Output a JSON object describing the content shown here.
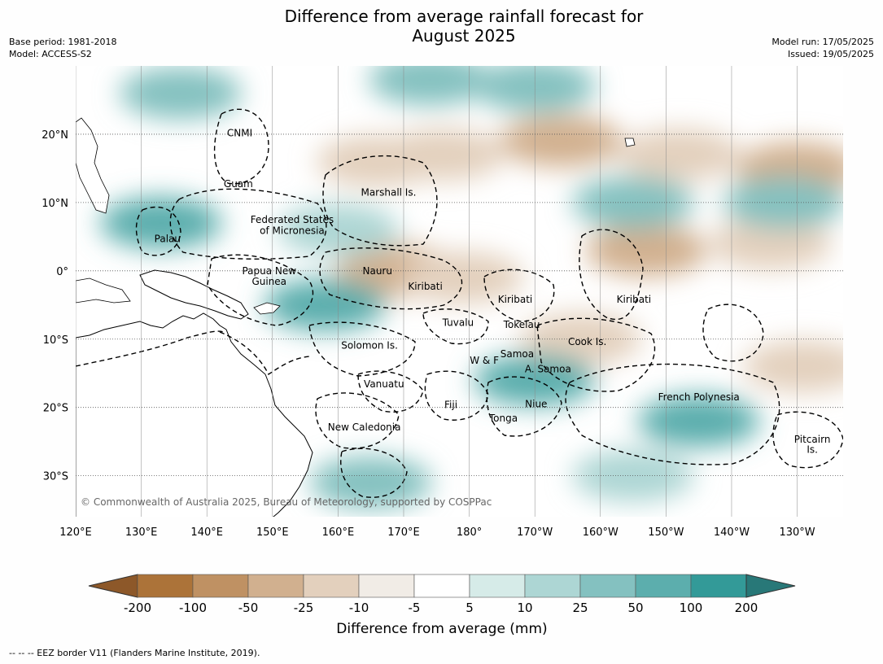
{
  "header": {
    "title_line1": "Difference from average rainfall forecast for",
    "title_line2": "August 2025",
    "base_period": "Base period: 1981-2018",
    "model": "Model: ACCESS-S2",
    "model_run": "Model run: 17/05/2025",
    "issued": "Issued: 19/05/2025"
  },
  "axes": {
    "lon_labels": [
      "120°E",
      "130°E",
      "140°E",
      "150°E",
      "160°E",
      "170°E",
      "180°",
      "170°W",
      "160°W",
      "150°W",
      "140°W",
      "130°W"
    ],
    "lat_labels": [
      "20°N",
      "10°N",
      "0°",
      "10°S",
      "20°S",
      "30°S"
    ]
  },
  "regions": [
    {
      "name": "CNMI",
      "lon": 145.0,
      "lat": 20.2
    },
    {
      "name": "Guam",
      "lon": 144.8,
      "lat": 12.7
    },
    {
      "name": "Marshall Is.",
      "lon": 167.7,
      "lat": 11.5
    },
    {
      "name": "Federated States",
      "lon": 153.0,
      "lat": 7.5
    },
    {
      "name": "of Micronesia",
      "lon": 153.0,
      "lat": 5.9
    },
    {
      "name": "Palau",
      "lon": 134.0,
      "lat": 4.7
    },
    {
      "name": "Papua New",
      "lon": 149.5,
      "lat": 0.0
    },
    {
      "name": "Guinea",
      "lon": 149.5,
      "lat": -1.6
    },
    {
      "name": "Nauru",
      "lon": 166.0,
      "lat": 0.0
    },
    {
      "name": "Kiribati",
      "lon": 173.3,
      "lat": -2.3
    },
    {
      "name": "Kiribati",
      "lon": 187.0,
      "lat": -4.2
    },
    {
      "name": "Kiribati",
      "lon": 205.1,
      "lat": -4.2
    },
    {
      "name": "Tuvalu",
      "lon": 178.3,
      "lat": -7.6
    },
    {
      "name": "Tokelau",
      "lon": 188.0,
      "lat": -7.9
    },
    {
      "name": "Cook Is.",
      "lon": 198.0,
      "lat": -10.4
    },
    {
      "name": "Solomon Is.",
      "lon": 164.8,
      "lat": -10.9
    },
    {
      "name": "Samoa",
      "lon": 187.3,
      "lat": -12.2
    },
    {
      "name": "W & F",
      "lon": 182.3,
      "lat": -13.1
    },
    {
      "name": "A. Samoa",
      "lon": 192.0,
      "lat": -14.4
    },
    {
      "name": "Vanuatu",
      "lon": 167.0,
      "lat": -16.6
    },
    {
      "name": "Fiji",
      "lon": 177.2,
      "lat": -19.6
    },
    {
      "name": "Niue",
      "lon": 190.2,
      "lat": -19.5
    },
    {
      "name": "French Polynesia",
      "lon": 215.0,
      "lat": -18.5
    },
    {
      "name": "Tonga",
      "lon": 185.2,
      "lat": -21.6
    },
    {
      "name": "New Caledonia",
      "lon": 164.0,
      "lat": -22.9
    },
    {
      "name": "Pitcairn",
      "lon": 232.3,
      "lat": -24.7
    },
    {
      "name": "Is.",
      "lon": 232.3,
      "lat": -26.2
    }
  ],
  "copyright": "© Commonwealth of Australia 2025, Bureau of Meteorology, supported by COSPPac",
  "colorbar": {
    "labels": [
      "-200",
      "-100",
      "-50",
      "-25",
      "-10",
      "-5",
      "5",
      "10",
      "25",
      "50",
      "100",
      "200"
    ],
    "colors": [
      "#ac7339",
      "#bf9163",
      "#d1b08f",
      "#e3d0bd",
      "#f1ece6",
      "#ffffff",
      "#d6ebe8",
      "#add6d4",
      "#84c1c0",
      "#5caead",
      "#339a98"
    ],
    "under_color": "#8d5829",
    "over_color": "#287878",
    "title": "Difference from average (mm)"
  },
  "legend_note": "--  --  -- EEZ border V11 (Flanders Marine Institute, 2019).",
  "chart_data": {
    "type": "heatmap",
    "lon_range": [
      120,
      237
    ],
    "lat_range": [
      -36,
      30
    ],
    "gridlines": true,
    "features": [
      {
        "lon": 166,
        "lat": 16,
        "class": -2
      },
      {
        "lon": 176,
        "lat": 17,
        "class": -2
      },
      {
        "lon": 194,
        "lat": 19,
        "class": -3
      },
      {
        "lon": 212,
        "lat": 17,
        "class": -2
      },
      {
        "lon": 230,
        "lat": 15,
        "class": -3
      },
      {
        "lon": 169,
        "lat": 0,
        "class": -3
      },
      {
        "lon": 179,
        "lat": -1,
        "class": -2
      },
      {
        "lon": 207,
        "lat": 3,
        "class": -3
      },
      {
        "lon": 226,
        "lat": 4,
        "class": -2
      },
      {
        "lon": 197,
        "lat": -10,
        "class": -2
      },
      {
        "lon": 231,
        "lat": -14,
        "class": -2
      },
      {
        "lon": 136,
        "lat": 26,
        "class": 3
      },
      {
        "lon": 174,
        "lat": 28,
        "class": 3
      },
      {
        "lon": 190,
        "lat": 27,
        "class": 3
      },
      {
        "lon": 133,
        "lat": 7,
        "class": 4
      },
      {
        "lon": 160,
        "lat": 6,
        "class": 2
      },
      {
        "lon": 205,
        "lat": 10,
        "class": 3
      },
      {
        "lon": 228,
        "lat": 10,
        "class": 3
      },
      {
        "lon": 158,
        "lat": -5,
        "class": 4
      },
      {
        "lon": 190,
        "lat": -16,
        "class": 4
      },
      {
        "lon": 215,
        "lat": -22,
        "class": 4
      },
      {
        "lon": 165,
        "lat": -31,
        "class": 3
      },
      {
        "lon": 205,
        "lat": -30,
        "class": 2
      }
    ]
  }
}
